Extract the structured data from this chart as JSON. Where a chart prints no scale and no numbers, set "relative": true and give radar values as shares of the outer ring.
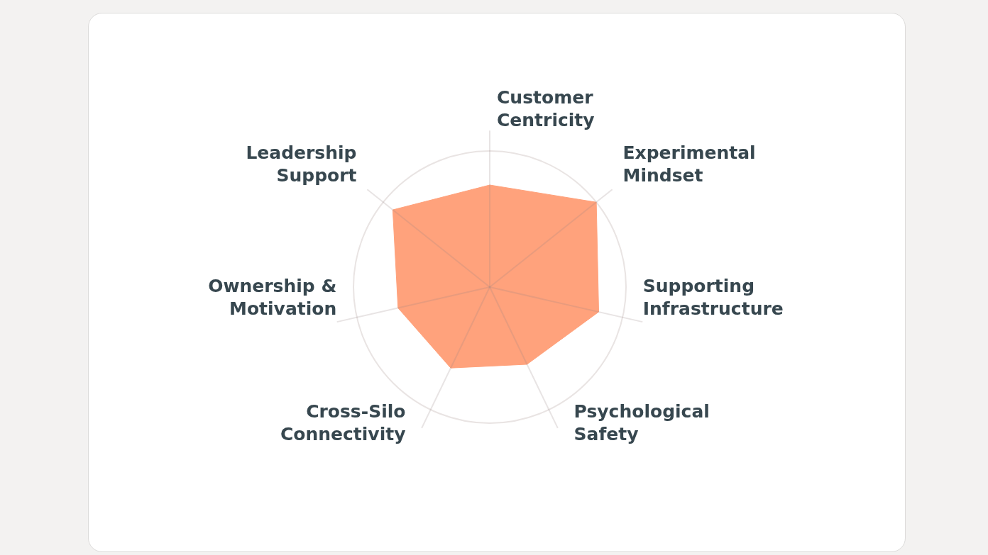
{
  "chart_data": {
    "type": "radar",
    "categories": [
      "Customer Centricity",
      "Experimental Mindset",
      "Supporting Infrastructure",
      "Psychological Safety",
      "Cross-Silo Connectivity",
      "Ownership & Motivation",
      "Leadership Support"
    ],
    "relative": true,
    "series": [
      {
        "color": "#ffa27c",
        "values": [
          0.75,
          1.0,
          0.82,
          0.63,
          0.66,
          0.69,
          0.91
        ]
      }
    ],
    "grid": true
  }
}
